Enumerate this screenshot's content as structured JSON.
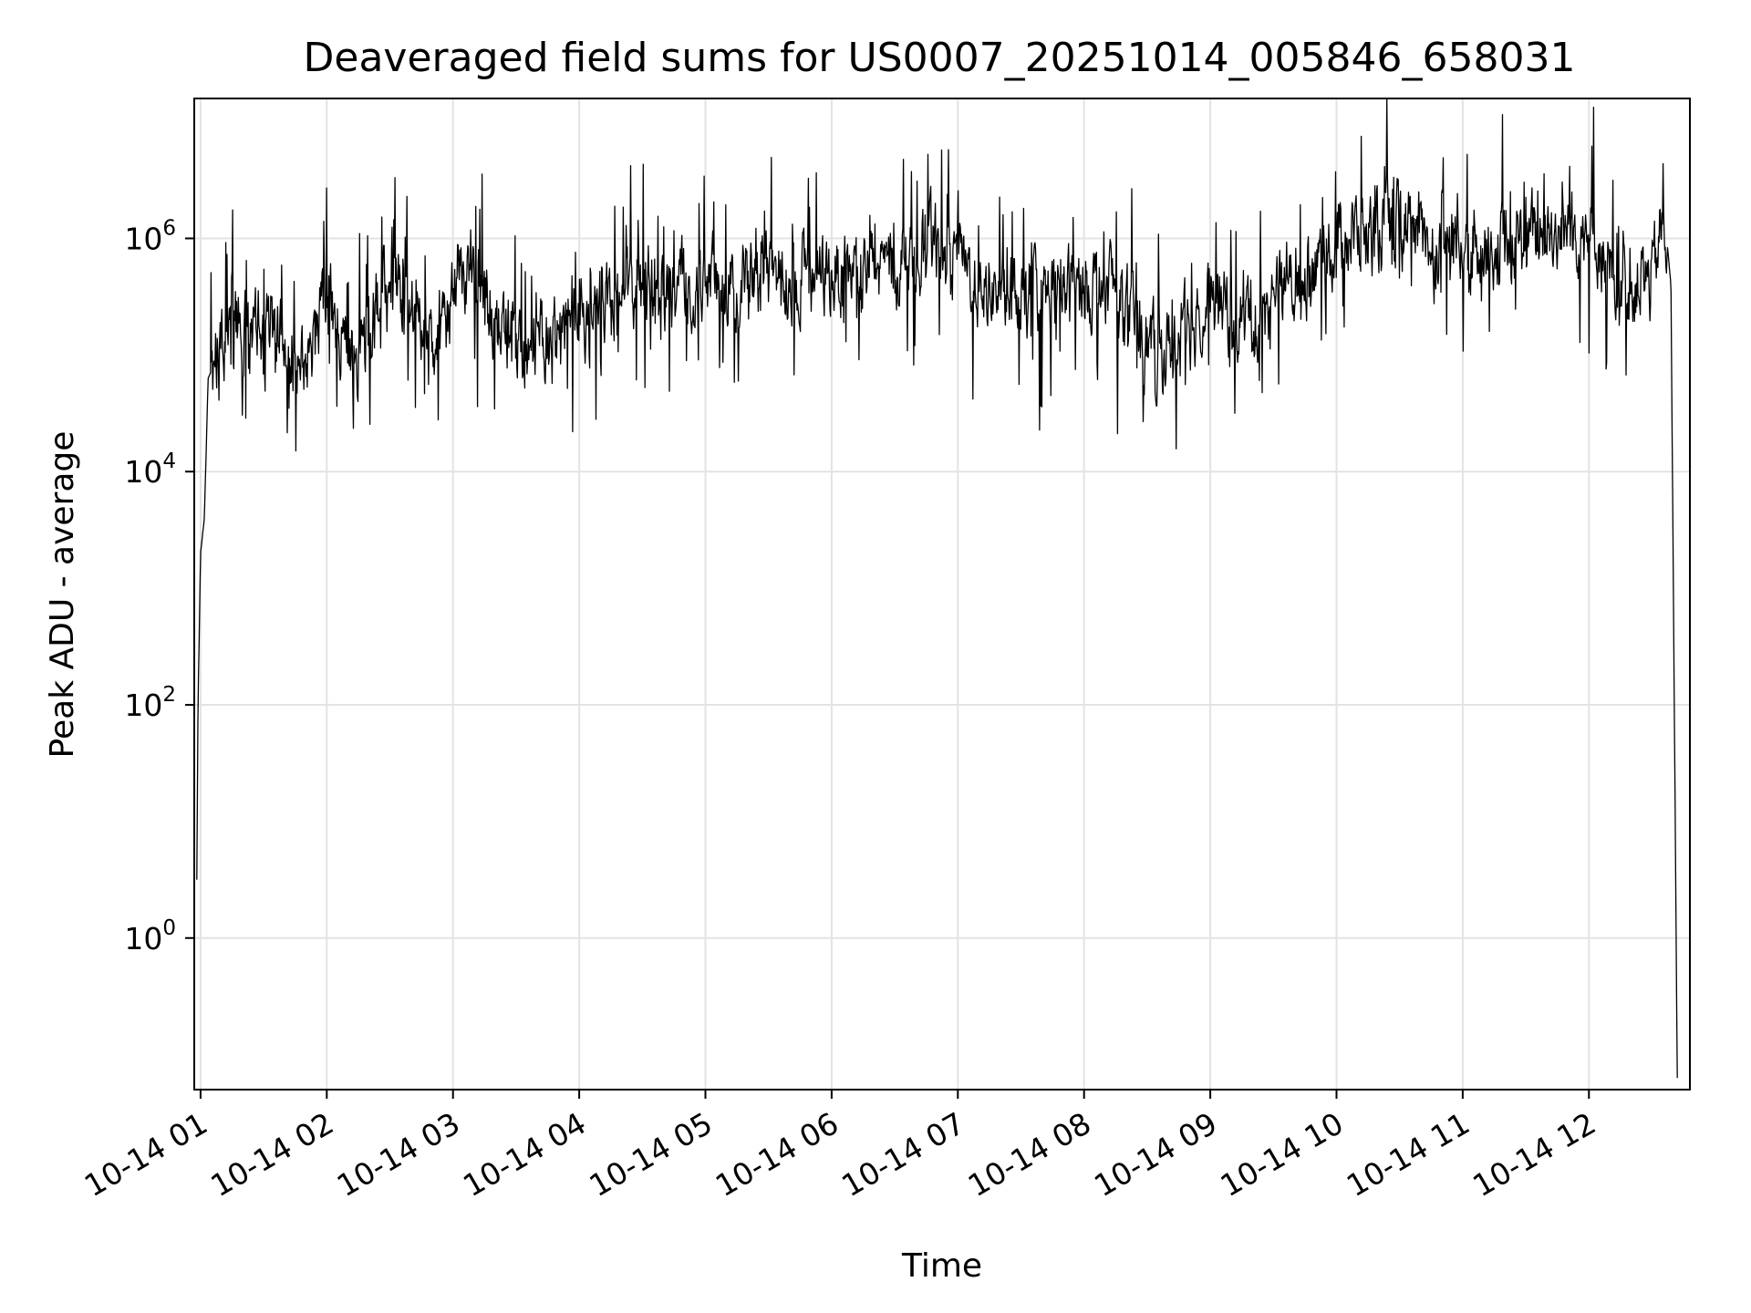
{
  "chart_data": {
    "type": "line",
    "title": "Deaveraged field sums for US0007_20251014_005846_658031",
    "xlabel": "Time",
    "ylabel": "Peak ADU - average",
    "yscale": "log",
    "ylim_log10": [
      -1.3,
      7.2
    ],
    "xlim_hours": [
      0.95,
      12.8
    ],
    "grid": true,
    "line_color": "#000000",
    "x_ticks": [
      {
        "hour": 1,
        "label": "10-14 01"
      },
      {
        "hour": 2,
        "label": "10-14 02"
      },
      {
        "hour": 3,
        "label": "10-14 03"
      },
      {
        "hour": 4,
        "label": "10-14 04"
      },
      {
        "hour": 5,
        "label": "10-14 05"
      },
      {
        "hour": 6,
        "label": "10-14 06"
      },
      {
        "hour": 7,
        "label": "10-14 07"
      },
      {
        "hour": 8,
        "label": "10-14 08"
      },
      {
        "hour": 9,
        "label": "10-14 09"
      },
      {
        "hour": 10,
        "label": "10-14 10"
      },
      {
        "hour": 11,
        "label": "10-14 11"
      },
      {
        "hour": 12,
        "label": "10-14 12"
      }
    ],
    "y_ticks": [
      {
        "exp": 0,
        "base": "10",
        "sup": "0"
      },
      {
        "exp": 2,
        "base": "10",
        "sup": "2"
      },
      {
        "exp": 4,
        "base": "10",
        "sup": "4"
      },
      {
        "exp": 6,
        "base": "10",
        "sup": "6"
      }
    ],
    "series": [
      {
        "name": "Peak ADU - average",
        "envelope_hour": [
          0.97,
          0.98,
          1.0,
          1.03,
          1.06,
          1.1,
          1.2,
          1.4,
          1.6,
          1.75,
          1.9,
          2.0,
          2.1,
          2.3,
          2.45,
          2.55,
          2.7,
          2.85,
          2.95,
          3.05,
          3.2,
          3.4,
          3.6,
          3.8,
          4.0,
          4.3,
          4.6,
          5.0,
          5.5,
          6.0,
          6.5,
          6.9,
          7.0,
          7.2,
          7.5,
          7.8,
          8.2,
          8.4,
          8.6,
          9.0,
          9.4,
          10.0,
          10.5,
          11.0,
          11.5,
          11.9,
          12.05,
          12.2,
          12.5,
          12.6,
          12.65,
          12.7
        ],
        "envelope_log10_value": [
          0.5,
          2.0,
          3.3,
          3.6,
          4.8,
          4.9,
          5.2,
          5.3,
          5.25,
          5.0,
          5.05,
          5.6,
          5.0,
          5.0,
          5.55,
          5.6,
          5.4,
          5.2,
          5.2,
          5.8,
          5.6,
          5.2,
          5.1,
          5.15,
          5.3,
          5.55,
          5.6,
          5.6,
          5.65,
          5.7,
          5.75,
          5.95,
          5.85,
          5.55,
          5.55,
          5.5,
          5.65,
          5.2,
          5.0,
          5.45,
          5.3,
          6.0,
          6.1,
          5.9,
          6.0,
          6.1,
          6.05,
          5.6,
          5.65,
          6.2,
          5.6,
          -1.2
        ]
      }
    ]
  }
}
